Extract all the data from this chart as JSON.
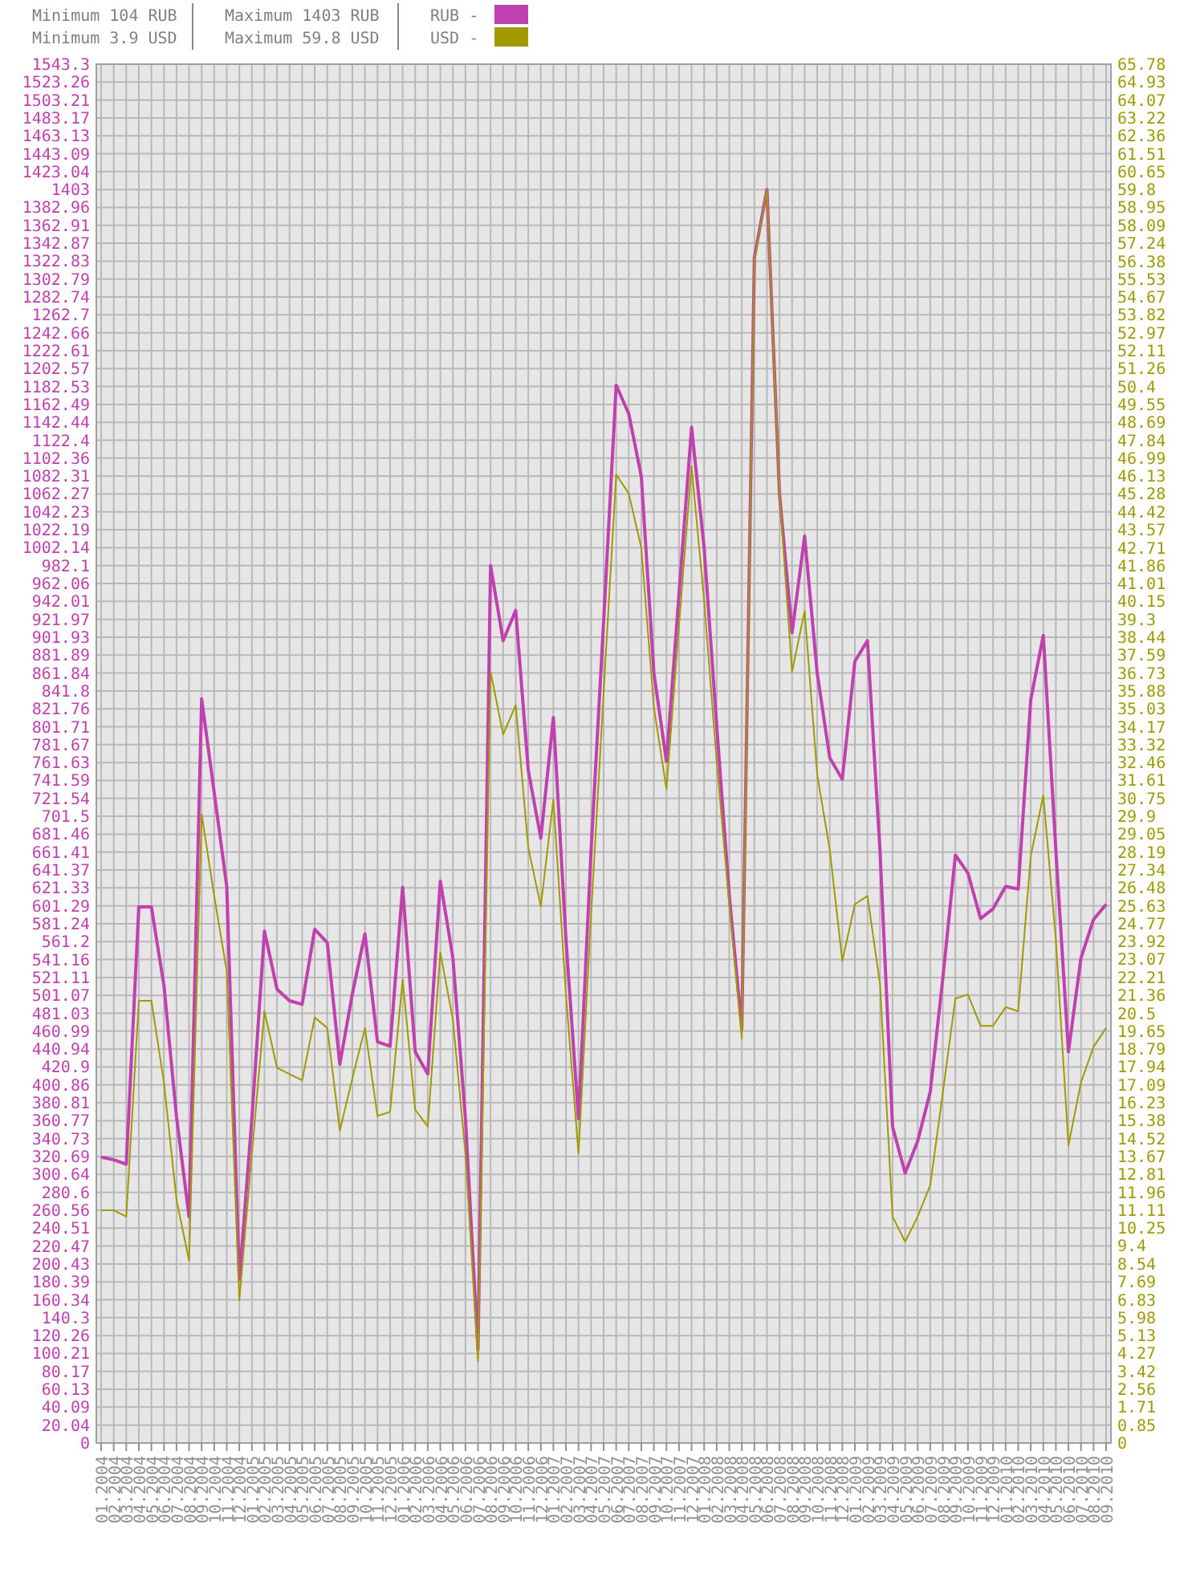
{
  "chart_data": {
    "type": "line",
    "annotations": [
      "Minimum 104 RUB",
      "Minimum 3.9 USD",
      "Maximum 1403 RUB",
      "Maximum 59.8 USD"
    ],
    "categories": [
      "01.2004",
      "02.2004",
      "03.2004",
      "04.2004",
      "05.2004",
      "06.2004",
      "07.2004",
      "08.2004",
      "09.2004",
      "10.2004",
      "11.2004",
      "12.2004",
      "01.2005",
      "02.2005",
      "03.2005",
      "04.2005",
      "05.2005",
      "06.2005",
      "07.2005",
      "08.2005",
      "09.2005",
      "10.2005",
      "11.2005",
      "12.2005",
      "01.2006",
      "02.2006",
      "03.2006",
      "04.2006",
      "05.2006",
      "06.2006",
      "07.2006",
      "08.2006",
      "09.2006",
      "10.2006",
      "11.2006",
      "12.2006",
      "01.2007",
      "02.2007",
      "03.2007",
      "04.2007",
      "05.2007",
      "06.2007",
      "07.2007",
      "08.2007",
      "09.2007",
      "10.2007",
      "11.2007",
      "12.2007",
      "01.2008",
      "02.2008",
      "03.2008",
      "04.2008",
      "05.2008",
      "06.2008",
      "07.2008",
      "08.2008",
      "09.2008",
      "10.2008",
      "11.2008",
      "12.2008",
      "01.2009",
      "02.2009",
      "03.2009",
      "04.2009",
      "05.2009",
      "06.2009",
      "07.2009",
      "08.2009",
      "09.2009",
      "10.2009",
      "11.2009",
      "12.2009",
      "01.2010",
      "02.2010",
      "03.2010",
      "04.2010",
      "05.2010",
      "06.2010",
      "07.2010",
      "08.2010",
      "09.2010"
    ],
    "series": [
      {
        "name": "RUB -",
        "color": "#c040b0",
        "values": [
          320,
          317,
          312,
          600,
          600,
          512,
          365,
          253,
          833,
          728,
          623,
          183,
          363,
          573,
          508,
          495,
          491,
          575,
          560,
          424,
          503,
          570,
          449,
          444,
          622,
          438,
          413,
          629,
          543,
          363,
          104,
          982,
          898,
          932,
          753,
          677,
          812,
          564,
          363,
          663,
          920,
          1184,
          1152,
          1082,
          862,
          763,
          950,
          1137,
          1002,
          803,
          613,
          464,
          1327,
          1403,
          1062,
          907,
          1015,
          862,
          767,
          743,
          875,
          898,
          663,
          354,
          302,
          338,
          393,
          520,
          658,
          638,
          587,
          598,
          623,
          620,
          832,
          904,
          663,
          438,
          543,
          586,
          603
        ]
      },
      {
        "name": "USD -",
        "color": "#a09a00",
        "axis": "y2",
        "values": [
          11.1,
          11.1,
          10.8,
          21.1,
          21.1,
          17.2,
          11.6,
          8.7,
          30.0,
          26.1,
          22.5,
          6.8,
          13.8,
          20.6,
          17.9,
          17.6,
          17.3,
          20.3,
          19.8,
          14.9,
          17.4,
          19.8,
          15.6,
          15.8,
          22.1,
          15.9,
          15.1,
          23.4,
          20.2,
          13.8,
          3.9,
          36.8,
          33.8,
          35.2,
          28.4,
          25.6,
          30.7,
          21.4,
          13.8,
          25.2,
          35.8,
          46.2,
          45.3,
          42.7,
          35.1,
          31.2,
          39.0,
          46.6,
          40.2,
          32.5,
          25.7,
          19.3,
          56.4,
          59.8,
          45.3,
          36.8,
          39.7,
          31.9,
          28.3,
          23.0,
          25.7,
          26.1,
          21.9,
          10.8,
          9.6,
          10.8,
          12.3,
          16.7,
          21.2,
          21.4,
          19.9,
          19.9,
          20.8,
          20.6,
          28.0,
          30.9,
          24.0,
          14.2,
          17.2,
          18.9,
          19.8
        ]
      }
    ],
    "ylim": [
      0,
      1543.3
    ],
    "yticks": [
      0,
      20.04,
      40.09,
      60.13,
      80.17,
      100.21,
      120.26,
      140.3,
      160.34,
      180.39,
      200.43,
      220.47,
      240.51,
      260.56,
      280.6,
      300.64,
      320.69,
      340.73,
      360.77,
      380.81,
      400.86,
      420.9,
      440.94,
      460.99,
      481.03,
      501.07,
      521.11,
      541.16,
      561.2,
      581.24,
      601.29,
      621.33,
      641.37,
      661.41,
      681.46,
      701.5,
      721.54,
      741.59,
      761.63,
      781.67,
      801.71,
      821.76,
      841.8,
      861.84,
      881.89,
      901.93,
      921.97,
      942.01,
      962.06,
      982.1,
      1002.14,
      1022.19,
      1042.23,
      1062.27,
      1082.31,
      1102.36,
      1122.4,
      1142.44,
      1162.49,
      1182.53,
      1202.57,
      1222.61,
      1242.66,
      1262.7,
      1282.74,
      1302.79,
      1322.83,
      1342.87,
      1362.91,
      1382.96,
      1403,
      1423.04,
      1443.09,
      1463.13,
      1483.17,
      1503.21,
      1523.26,
      1543.3
    ],
    "y2lim": [
      0,
      65.78
    ],
    "y2ticks": [
      0,
      0.85,
      1.71,
      2.56,
      3.42,
      4.27,
      5.13,
      5.98,
      6.83,
      7.69,
      8.54,
      9.4,
      10.25,
      11.11,
      11.96,
      12.81,
      13.67,
      14.52,
      15.38,
      16.23,
      17.09,
      17.94,
      18.79,
      19.65,
      20.5,
      21.36,
      22.21,
      23.07,
      23.92,
      24.77,
      25.63,
      26.48,
      27.34,
      28.19,
      29.05,
      29.9,
      30.75,
      31.61,
      32.46,
      33.32,
      34.17,
      35.03,
      35.88,
      36.73,
      37.59,
      38.44,
      39.3,
      40.15,
      41.01,
      41.86,
      42.71,
      43.57,
      44.42,
      45.28,
      46.13,
      46.99,
      47.84,
      48.69,
      49.55,
      50.4,
      51.26,
      52.11,
      52.97,
      53.82,
      54.67,
      55.53,
      56.38,
      57.24,
      58.09,
      58.95,
      59.8,
      60.65,
      61.51,
      62.36,
      63.22,
      64.07,
      64.93,
      65.78
    ],
    "grid": true,
    "legend": "top"
  }
}
